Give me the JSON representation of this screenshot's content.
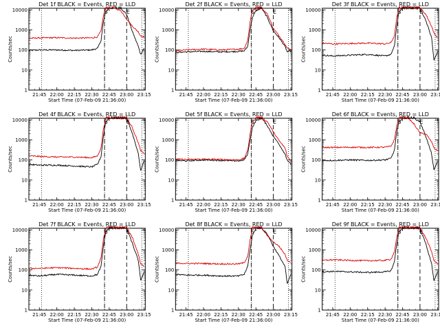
{
  "colors": {
    "events": "#000000",
    "lld": "#dd0000",
    "background": "#ffffff",
    "axes": "#000000"
  },
  "layout_rows": 3,
  "layout_cols": 3,
  "xlabel": "Start Time (07-Feb-09 21:36:00)",
  "ylabel": "Counts/sec",
  "x_ticks": [
    "21:45",
    "22:00",
    "22:15",
    "22:30",
    "22:45",
    "23:00",
    "23:15"
  ],
  "y_ticks": [
    "1",
    "10",
    "100",
    "1000",
    "10000"
  ],
  "markers": [
    {
      "label": "S",
      "time": "22:41",
      "style": "dashed"
    },
    {
      "label": "E",
      "time": "23:00",
      "style": "dashed"
    }
  ],
  "chart_data": [
    {
      "type": "line",
      "title": "Det 1f BLACK = Events, RED = LLD",
      "xlabel": "Start Time (07-Feb-09 21:36:00)",
      "ylabel": "Counts/sec",
      "y_scale": "log",
      "ylim": [
        1,
        12000
      ],
      "x_range": [
        "21:36",
        "23:16"
      ],
      "x": [
        "21:36",
        "21:45",
        "22:00",
        "22:15",
        "22:30",
        "22:35",
        "22:38",
        "22:40",
        "22:42",
        "22:45",
        "22:50",
        "22:55",
        "23:00",
        "23:05",
        "23:10",
        "23:12",
        "23:15"
      ],
      "series": [
        {
          "name": "BLACK = Events",
          "color": "#000000",
          "values": [
            95,
            100,
            100,
            95,
            100,
            120,
            300,
            2500,
            8000,
            12000,
            12000,
            12000,
            6000,
            800,
            150,
            60,
            120
          ]
        },
        {
          "name": "RED = LLD",
          "color": "#dd0000",
          "values": [
            380,
            400,
            410,
            390,
            400,
            450,
            900,
            5000,
            12000,
            12000,
            12000,
            9000,
            3500,
            1500,
            800,
            500,
            450
          ]
        }
      ]
    },
    {
      "type": "line",
      "title": "Det 2f BLACK = Events, RED = LLD",
      "xlabel": "Start Time (07-Feb-09 21:36:00)",
      "ylabel": "Counts/sec",
      "y_scale": "log",
      "ylim": [
        1,
        12000
      ],
      "x_range": [
        "21:36",
        "23:16"
      ],
      "x": [
        "21:36",
        "21:45",
        "22:00",
        "22:15",
        "22:30",
        "22:35",
        "22:38",
        "22:40",
        "22:42",
        "22:45",
        "22:50",
        "22:55",
        "23:00",
        "23:05",
        "23:10",
        "23:12",
        "23:15"
      ],
      "series": [
        {
          "name": "BLACK = Events",
          "color": "#000000",
          "values": [
            75,
            80,
            85,
            80,
            85,
            90,
            150,
            1000,
            4000,
            9000,
            12000,
            4000,
            900,
            400,
            150,
            80,
            90
          ]
        },
        {
          "name": "RED = LLD",
          "color": "#dd0000",
          "values": [
            90,
            100,
            110,
            100,
            110,
            120,
            300,
            2500,
            9000,
            12000,
            12000,
            6000,
            1200,
            500,
            200,
            120,
            110
          ]
        }
      ]
    },
    {
      "type": "line",
      "title": "Det 3f BLACK = Events, RED = LLD",
      "xlabel": "Start Time (07-Feb-09 21:36:00)",
      "ylabel": "Counts/sec",
      "y_scale": "log",
      "ylim": [
        1,
        12000
      ],
      "x_range": [
        "21:36",
        "23:16"
      ],
      "x": [
        "21:36",
        "21:45",
        "22:00",
        "22:15",
        "22:30",
        "22:35",
        "22:38",
        "22:40",
        "22:42",
        "22:45",
        "22:50",
        "22:55",
        "23:00",
        "23:05",
        "23:10",
        "23:12",
        "23:15"
      ],
      "series": [
        {
          "name": "BLACK = Events",
          "color": "#000000",
          "values": [
            55,
            50,
            55,
            60,
            50,
            60,
            150,
            1500,
            8000,
            12000,
            12000,
            12000,
            12000,
            3000,
            400,
            30,
            80
          ]
        },
        {
          "name": "RED = LLD",
          "color": "#dd0000",
          "values": [
            220,
            200,
            210,
            220,
            200,
            230,
            500,
            4000,
            12000,
            12000,
            12000,
            12000,
            12000,
            6000,
            1500,
            700,
            400
          ]
        }
      ]
    },
    {
      "type": "line",
      "title": "Det 4f BLACK = Events, RED = LLD",
      "xlabel": "Start Time (07-Feb-09 21:36:00)",
      "ylabel": "Counts/sec",
      "y_scale": "log",
      "ylim": [
        1,
        12000
      ],
      "x_range": [
        "21:36",
        "23:16"
      ],
      "x": [
        "21:36",
        "21:45",
        "22:00",
        "22:15",
        "22:30",
        "22:35",
        "22:38",
        "22:40",
        "22:42",
        "22:45",
        "22:50",
        "22:55",
        "23:00",
        "23:05",
        "23:10",
        "23:12",
        "23:15"
      ],
      "series": [
        {
          "name": "BLACK = Events",
          "color": "#000000",
          "values": [
            60,
            55,
            55,
            50,
            45,
            60,
            150,
            1500,
            8000,
            12000,
            12000,
            12000,
            12000,
            2000,
            200,
            30,
            90
          ]
        },
        {
          "name": "RED = LLD",
          "color": "#dd0000",
          "values": [
            160,
            150,
            140,
            140,
            130,
            160,
            400,
            3500,
            12000,
            12000,
            12000,
            12000,
            12000,
            4000,
            700,
            300,
            200
          ]
        }
      ]
    },
    {
      "type": "line",
      "title": "Det 5f BLACK = Events, RED = LLD",
      "xlabel": "Start Time (07-Feb-09 21:36:00)",
      "ylabel": "Counts/sec",
      "y_scale": "log",
      "ylim": [
        1,
        12000
      ],
      "x_range": [
        "21:36",
        "23:16"
      ],
      "x": [
        "21:36",
        "21:45",
        "22:00",
        "22:15",
        "22:30",
        "22:35",
        "22:38",
        "22:40",
        "22:42",
        "22:45",
        "22:50",
        "22:55",
        "23:00",
        "23:05",
        "23:10",
        "23:12",
        "23:15"
      ],
      "series": [
        {
          "name": "BLACK = Events",
          "color": "#000000",
          "values": [
            95,
            90,
            100,
            95,
            90,
            100,
            200,
            1000,
            4000,
            9000,
            12000,
            5000,
            1500,
            600,
            200,
            100,
            60
          ]
        },
        {
          "name": "RED = LLD",
          "color": "#dd0000",
          "values": [
            110,
            105,
            110,
            105,
            100,
            120,
            300,
            2000,
            8000,
            12000,
            12000,
            8000,
            2500,
            900,
            400,
            150,
            90
          ]
        }
      ]
    },
    {
      "type": "line",
      "title": "Det 6f BLACK = Events, RED = LLD",
      "xlabel": "Start Time (07-Feb-09 21:36:00)",
      "ylabel": "Counts/sec",
      "y_scale": "log",
      "ylim": [
        1,
        12000
      ],
      "x_range": [
        "21:36",
        "23:16"
      ],
      "x": [
        "21:36",
        "21:45",
        "22:00",
        "22:15",
        "22:30",
        "22:35",
        "22:38",
        "22:40",
        "22:42",
        "22:45",
        "22:50",
        "22:55",
        "23:00",
        "23:05",
        "23:10",
        "23:12",
        "23:15"
      ],
      "series": [
        {
          "name": "BLACK = Events",
          "color": "#000000",
          "values": [
            95,
            95,
            100,
            95,
            100,
            120,
            300,
            2500,
            8000,
            12000,
            12000,
            12000,
            8000,
            1500,
            200,
            30,
            90
          ]
        },
        {
          "name": "RED = LLD",
          "color": "#dd0000",
          "values": [
            420,
            420,
            430,
            420,
            430,
            480,
            1000,
            5000,
            12000,
            12000,
            12000,
            6000,
            2200,
            2000,
            800,
            400,
            280
          ]
        }
      ]
    },
    {
      "type": "line",
      "title": "Det 7f BLACK = Events, RED = LLD",
      "xlabel": "Start Time (07-Feb-09 21:36:00)",
      "ylabel": "Counts/sec",
      "y_scale": "log",
      "ylim": [
        1,
        12000
      ],
      "x_range": [
        "21:36",
        "23:16"
      ],
      "x": [
        "21:36",
        "21:45",
        "22:00",
        "22:15",
        "22:30",
        "22:35",
        "22:38",
        "22:40",
        "22:42",
        "22:45",
        "22:50",
        "22:55",
        "23:00",
        "23:05",
        "23:10",
        "23:12",
        "23:15"
      ],
      "series": [
        {
          "name": "BLACK = Events",
          "color": "#000000",
          "values": [
            55,
            50,
            60,
            55,
            50,
            60,
            150,
            1500,
            8000,
            12000,
            12000,
            12000,
            12000,
            2000,
            300,
            30,
            80
          ]
        },
        {
          "name": "RED = LLD",
          "color": "#dd0000",
          "values": [
            120,
            120,
            130,
            120,
            110,
            140,
            400,
            3500,
            12000,
            12000,
            12000,
            12000,
            12000,
            4000,
            600,
            200,
            150
          ]
        }
      ]
    },
    {
      "type": "line",
      "title": "Det 8f BLACK = Events, RED = LLD",
      "xlabel": "Start Time (07-Feb-09 21:36:00)",
      "ylabel": "Counts/sec",
      "y_scale": "log",
      "ylim": [
        1,
        12000
      ],
      "x_range": [
        "21:36",
        "23:16"
      ],
      "x": [
        "21:36",
        "21:45",
        "22:00",
        "22:15",
        "22:30",
        "22:35",
        "22:38",
        "22:40",
        "22:42",
        "22:45",
        "22:50",
        "22:55",
        "23:00",
        "23:05",
        "23:10",
        "23:12",
        "23:15"
      ],
      "series": [
        {
          "name": "BLACK = Events",
          "color": "#000000",
          "values": [
            60,
            55,
            55,
            50,
            50,
            60,
            150,
            1000,
            5000,
            12000,
            12000,
            6000,
            1500,
            500,
            150,
            20,
            60
          ]
        },
        {
          "name": "RED = LLD",
          "color": "#dd0000",
          "values": [
            220,
            210,
            210,
            200,
            200,
            230,
            500,
            3000,
            12000,
            12000,
            12000,
            5000,
            2500,
            1500,
            600,
            300,
            250
          ]
        }
      ]
    },
    {
      "type": "line",
      "title": "Det 9f BLACK = Events, RED = LLD",
      "xlabel": "Start Time (07-Feb-09 21:36:00)",
      "ylabel": "Counts/sec",
      "y_scale": "log",
      "ylim": [
        1,
        12000
      ],
      "x_range": [
        "21:36",
        "23:16"
      ],
      "x": [
        "21:36",
        "21:45",
        "22:00",
        "22:15",
        "22:30",
        "22:35",
        "22:38",
        "22:40",
        "22:42",
        "22:45",
        "22:50",
        "22:55",
        "23:00",
        "23:05",
        "23:10",
        "23:12",
        "23:15"
      ],
      "series": [
        {
          "name": "BLACK = Events",
          "color": "#000000",
          "values": [
            80,
            85,
            80,
            75,
            80,
            90,
            250,
            2000,
            8000,
            12000,
            12000,
            12000,
            12000,
            2000,
            200,
            30,
            80
          ]
        },
        {
          "name": "RED = LLD",
          "color": "#dd0000",
          "values": [
            300,
            320,
            300,
            290,
            300,
            340,
            800,
            4000,
            12000,
            12000,
            12000,
            12000,
            12000,
            4000,
            800,
            300,
            200
          ]
        }
      ]
    }
  ]
}
